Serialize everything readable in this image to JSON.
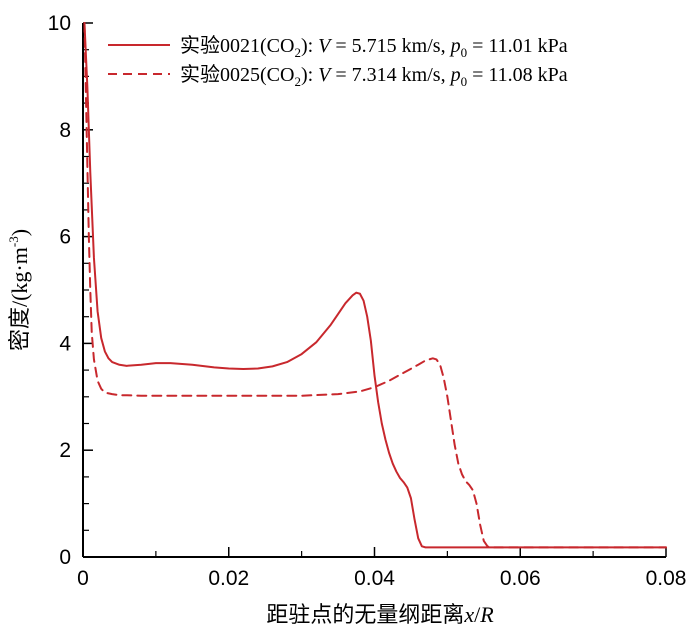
{
  "chart_data": {
    "type": "line",
    "xlabel": "距驻点的无量纲距离",
    "xlabel_var": "x",
    "xlabel_sep": "/",
    "xlabel_var2": "R",
    "ylabel": "密度/(kg·m",
    "ylabel_exp": "-3",
    "ylabel_close": ")",
    "xlim": [
      0,
      0.08
    ],
    "ylim": [
      0,
      10
    ],
    "x_ticks": [
      0,
      0.02,
      0.04,
      0.06,
      0.08
    ],
    "x_tick_labels": [
      "0",
      "0.02",
      "0.04",
      "0.06",
      "0.08"
    ],
    "y_ticks": [
      0,
      2,
      4,
      6,
      8,
      10
    ],
    "y_tick_labels": [
      "0",
      "2",
      "4",
      "6",
      "8",
      "10"
    ],
    "grid": false,
    "legend_position": "top-right",
    "series": [
      {
        "label_prefix": "实验0021(CO",
        "label_sub": "2",
        "label_mid": "): ",
        "label_v": "V",
        "label_v_value": " = 5.715 km/s,  ",
        "label_p": "p",
        "label_p_sub": "0",
        "label_p_value": " = 11.01 kPa",
        "color": "#c8282d",
        "style": "solid",
        "x": [
          0.0002,
          0.0006,
          0.001,
          0.0015,
          0.002,
          0.0025,
          0.003,
          0.0035,
          0.004,
          0.005,
          0.006,
          0.008,
          0.01,
          0.012,
          0.015,
          0.018,
          0.02,
          0.022,
          0.024,
          0.026,
          0.028,
          0.03,
          0.032,
          0.034,
          0.035,
          0.036,
          0.037,
          0.0375,
          0.038,
          0.0385,
          0.039,
          0.0395,
          0.04,
          0.0405,
          0.041,
          0.0415,
          0.042,
          0.0425,
          0.043,
          0.0435,
          0.044,
          0.0445,
          0.045,
          0.0455,
          0.046,
          0.0465,
          0.047,
          0.0475,
          0.05,
          0.06,
          0.07,
          0.08
        ],
        "y": [
          10.0,
          8.8,
          7.2,
          5.6,
          4.6,
          4.1,
          3.85,
          3.72,
          3.65,
          3.6,
          3.58,
          3.6,
          3.63,
          3.63,
          3.6,
          3.55,
          3.53,
          3.52,
          3.53,
          3.57,
          3.65,
          3.8,
          4.02,
          4.35,
          4.55,
          4.75,
          4.9,
          4.95,
          4.93,
          4.8,
          4.5,
          4.05,
          3.4,
          2.9,
          2.5,
          2.2,
          1.95,
          1.75,
          1.6,
          1.48,
          1.4,
          1.3,
          1.1,
          0.7,
          0.35,
          0.2,
          0.18,
          0.18,
          0.18,
          0.18,
          0.18,
          0.18
        ]
      },
      {
        "label_prefix": "实验0025(CO",
        "label_sub": "2",
        "label_mid": "): ",
        "label_v": "V",
        "label_v_value": " = 7.314 km/s,  ",
        "label_p": "p",
        "label_p_sub": "0",
        "label_p_value": " = 11.08 kPa",
        "color": "#c8282d",
        "style": "dashed",
        "x": [
          0.0002,
          0.0005,
          0.0008,
          0.001,
          0.0012,
          0.0015,
          0.002,
          0.0025,
          0.003,
          0.004,
          0.005,
          0.006,
          0.008,
          0.01,
          0.015,
          0.02,
          0.025,
          0.03,
          0.035,
          0.038,
          0.04,
          0.042,
          0.044,
          0.046,
          0.047,
          0.048,
          0.0485,
          0.049,
          0.0495,
          0.05,
          0.0505,
          0.051,
          0.0515,
          0.052,
          0.0525,
          0.053,
          0.0535,
          0.054,
          0.0545,
          0.055,
          0.0555,
          0.056,
          0.06,
          0.07,
          0.08
        ],
        "y": [
          10.0,
          8.0,
          6.0,
          5.0,
          4.2,
          3.7,
          3.3,
          3.15,
          3.08,
          3.05,
          3.03,
          3.03,
          3.02,
          3.02,
          3.02,
          3.02,
          3.02,
          3.02,
          3.05,
          3.1,
          3.18,
          3.3,
          3.45,
          3.6,
          3.68,
          3.72,
          3.7,
          3.6,
          3.35,
          3.0,
          2.55,
          2.1,
          1.75,
          1.55,
          1.42,
          1.35,
          1.25,
          1.0,
          0.6,
          0.3,
          0.2,
          0.18,
          0.18,
          0.18,
          0.18
        ]
      }
    ]
  }
}
